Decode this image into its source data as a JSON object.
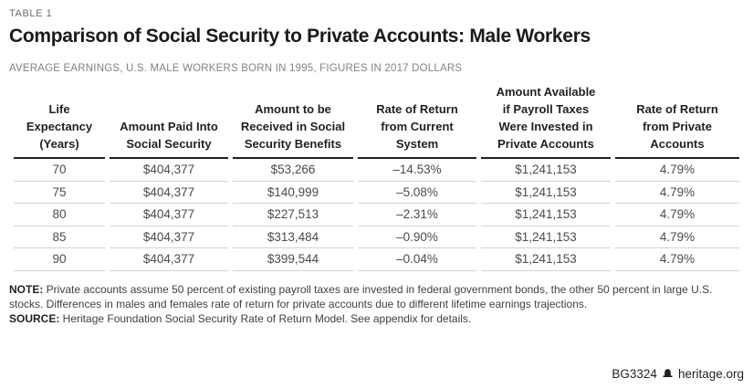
{
  "page": {
    "table_label": "TABLE 1",
    "title": "Comparison of Social Security to Private Accounts: Male Workers",
    "subtitle": "AVERAGE EARNINGS, U.S. MALE WORKERS BORN IN 1995, FIGURES IN 2017 DOLLARS"
  },
  "chart_data": {
    "type": "table",
    "title": "Comparison of Social Security to Private Accounts: Male Workers",
    "subtitle": "AVERAGE EARNINGS, U.S. MALE WORKERS BORN IN 1995, FIGURES IN 2017 DOLLARS",
    "columns": [
      "Life\nExpectancy\n(Years)",
      "Amount Paid Into\nSocial Security",
      "Amount to be\nReceived in Social\nSecurity Benefits",
      "Rate of Return\nfrom Current\nSystem",
      "Amount Available\nif Payroll Taxes\nWere Invested in\nPrivate Accounts",
      "Rate of Return\nfrom Private\nAccounts"
    ],
    "rows": [
      [
        "70",
        "$404,377",
        "$53,266",
        "–14.53%",
        "$1,241,153",
        "4.79%"
      ],
      [
        "75",
        "$404,377",
        "$140,999",
        "–5.08%",
        "$1,241,153",
        "4.79%"
      ],
      [
        "80",
        "$404,377",
        "$227,513",
        "–2.31%",
        "$1,241,153",
        "4.79%"
      ],
      [
        "85",
        "$404,377",
        "$313,484",
        "–0.90%",
        "$1,241,153",
        "4.79%"
      ],
      [
        "90",
        "$404,377",
        "$399,544",
        "–0.04%",
        "$1,241,153",
        "4.79%"
      ]
    ]
  },
  "notes": {
    "note_label": "NOTE:",
    "note_text": " Private accounts assume 50 percent of existing payroll taxes are invested in federal government bonds, the other 50 percent in large U.S. stocks. Differences in males and females rate of return for private accounts due to different lifetime earnings trajections.",
    "source_label": "SOURCE:",
    "source_text": " Heritage Foundation Social Security Rate of Return Model. See appendix for details."
  },
  "footer": {
    "id": "BG3324",
    "site": "heritage.org",
    "logo_icon": "liberty-bell-icon"
  },
  "colors": {
    "header_rule": "#231f20",
    "row_rule": "#d2d4d5",
    "muted_text": "#808285",
    "body_text": "#4b4b4d",
    "title_text": "#1a1a1a"
  }
}
